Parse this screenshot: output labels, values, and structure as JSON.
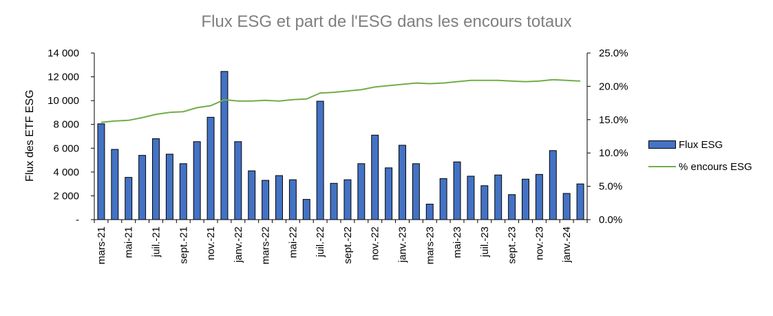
{
  "chart_data": {
    "type": "bar",
    "title": "Flux ESG et part de l'ESG dans les encours totaux",
    "ylabel": "Flux des ETF ESG",
    "y2label": "",
    "ylim": [
      0,
      14000
    ],
    "y2lim": [
      0,
      25
    ],
    "yticks": [
      "-",
      "2 000",
      "4 000",
      "6 000",
      "8 000",
      "10 000",
      "12 000",
      "14 000"
    ],
    "y2ticks": [
      "0.0%",
      "5.0%",
      "10.0%",
      "15.0%",
      "20.0%",
      "25.0%"
    ],
    "x_tick_labels": [
      "mars-21",
      "mai-21",
      "juil.-21",
      "sept.-21",
      "nov.-21",
      "janv.-22",
      "mars-22",
      "mai-22",
      "juil.-22",
      "sept.-22",
      "nov.-22",
      "janv.-23",
      "mars-23",
      "mai-23",
      "juil.-23",
      "sept.-23",
      "nov.-23",
      "janv.-24"
    ],
    "categories": [
      "mars-21",
      "avr.-21",
      "mai-21",
      "juin-21",
      "juil.-21",
      "août-21",
      "sept.-21",
      "oct.-21",
      "nov.-21",
      "déc.-21",
      "janv.-22",
      "févr.-22",
      "mars-22",
      "avr.-22",
      "mai-22",
      "juin-22",
      "juil.-22",
      "août-22",
      "sept.-22",
      "oct.-22",
      "nov.-22",
      "déc.-22",
      "janv.-23",
      "févr.-23",
      "mars-23",
      "avr.-23",
      "mai-23",
      "juin-23",
      "juil.-23",
      "août-23",
      "sept.-23",
      "oct.-23",
      "nov.-23",
      "déc.-23",
      "janv.-24",
      "févr.-24"
    ],
    "series": [
      {
        "name": "Flux ESG",
        "type": "bar",
        "axis": "left",
        "color": "#4472c4",
        "values": [
          8050,
          5900,
          3550,
          5400,
          6800,
          5500,
          4700,
          6550,
          8600,
          12450,
          6550,
          4100,
          3300,
          3700,
          3350,
          1700,
          9950,
          3050,
          3350,
          4700,
          7100,
          4350,
          6250,
          4700,
          1300,
          3450,
          4850,
          3650,
          2850,
          3750,
          2100,
          3400,
          3800,
          5800,
          2200,
          3000
        ]
      },
      {
        "name": "% encours ESG",
        "type": "line",
        "axis": "right",
        "color": "#70ad47",
        "values": [
          14.6,
          14.8,
          14.9,
          15.3,
          15.8,
          16.1,
          16.2,
          16.8,
          17.1,
          18.0,
          17.8,
          17.8,
          17.9,
          17.8,
          18.0,
          18.1,
          19.0,
          19.1,
          19.3,
          19.5,
          19.9,
          20.1,
          20.3,
          20.5,
          20.4,
          20.5,
          20.7,
          20.9,
          20.9,
          20.9,
          20.8,
          20.7,
          20.8,
          21.0,
          20.9,
          20.8
        ]
      }
    ],
    "grid": false,
    "legend": "right"
  }
}
